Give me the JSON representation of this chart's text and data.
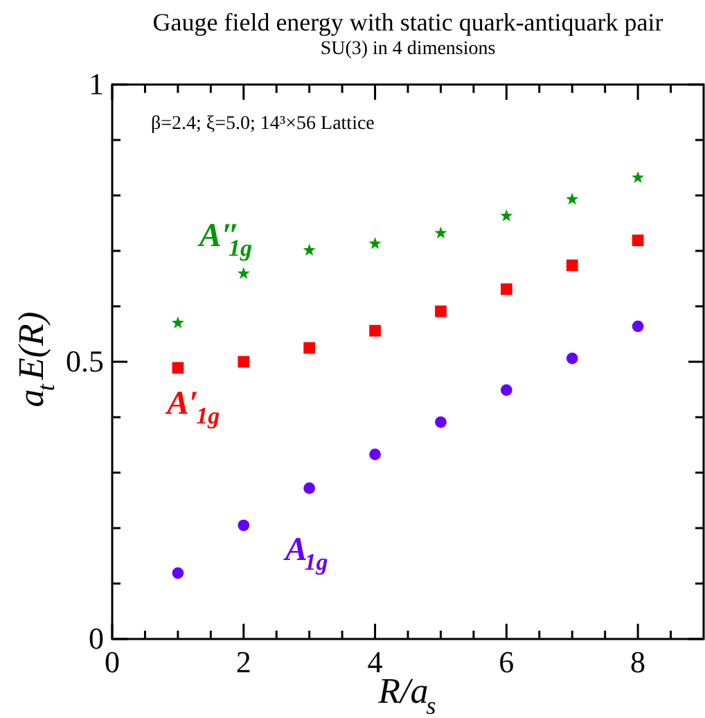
{
  "chart_data": {
    "type": "scatter",
    "title": "Gauge field energy with static quark-antiquark pair",
    "subtitle": "SU(3) in 4 dimensions",
    "xlabel": "R/a$_{s}$",
    "ylabel": "a$_{t}$E(R)",
    "annotations": [
      "β=2.4;  ξ=5.0; 14³×56 Lattice"
    ],
    "x": [
      1,
      2,
      3,
      4,
      5,
      6,
      7,
      8
    ],
    "series": [
      {
        "name": "A$_{1g}$",
        "color": "#6600ff",
        "marker": "circle",
        "values": [
          0.119,
          0.205,
          0.272,
          0.333,
          0.391,
          0.449,
          0.506,
          0.564
        ]
      },
      {
        "name": "A′$_{1g}$",
        "color": "#ff0000",
        "marker": "square",
        "values": [
          0.489,
          0.5,
          0.525,
          0.556,
          0.591,
          0.631,
          0.674,
          0.719
        ]
      },
      {
        "name": "A″$_{1g}$",
        "color": "#009900",
        "marker": "star",
        "values": [
          0.57,
          0.659,
          0.701,
          0.713,
          0.732,
          0.763,
          0.793,
          0.832
        ]
      }
    ],
    "xlim": [
      0,
      9
    ],
    "ylim": [
      0,
      1
    ],
    "xticks": [
      0,
      {
        "value": 0.5,
        "label": null
      },
      2,
      {
        "value": 1,
        "label": null
      },
      {
        "value": 1.5,
        "label": null
      },
      {
        "value": 2.5,
        "label": null
      },
      {
        "value": 3,
        "label": null
      },
      {
        "value": 3.5,
        "label": null
      },
      4,
      {
        "value": 4.5,
        "label": null
      },
      {
        "value": 5,
        "label": null
      },
      {
        "value": 5.5,
        "label": null
      },
      6,
      {
        "value": 6.5,
        "label": null
      },
      {
        "value": 7,
        "label": null
      },
      {
        "value": 7.5,
        "label": null
      },
      8,
      {
        "value": 8.5,
        "label": null
      }
    ],
    "yticks": [
      0,
      {
        "value": 0.1,
        "label": null
      },
      {
        "value": 0.2,
        "label": null
      },
      {
        "value": 0.3,
        "label": null
      },
      {
        "value": 0.4,
        "label": null
      },
      0.5,
      {
        "value": 0.6,
        "label": null
      },
      {
        "value": 0.7,
        "label": null
      },
      {
        "value": 0.8,
        "label": null
      },
      {
        "value": 0.9,
        "label": null
      },
      1
    ],
    "grid": false
  }
}
